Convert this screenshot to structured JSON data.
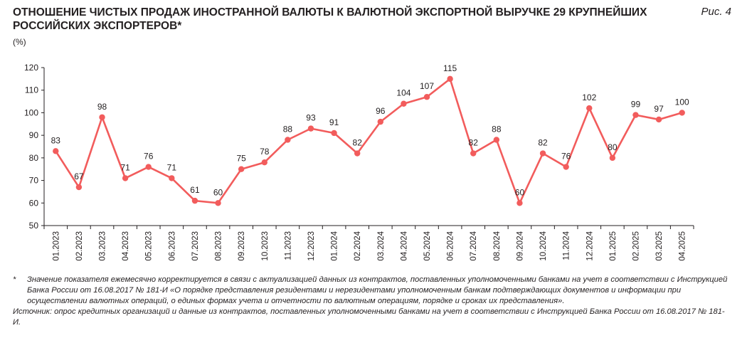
{
  "header": {
    "title": "ОТНОШЕНИЕ ЧИСТЫХ ПРОДАЖ ИНОСТРАННОЙ ВАЛЮТЫ К ВАЛЮТНОЙ ЭКСПОРТНОЙ ВЫРУЧКЕ 29 КРУПНЕЙШИХ РОССИЙСКИХ ЭКСПОРТЕРОВ*",
    "figure_label": "Рис. 4",
    "unit": "(%)"
  },
  "chart_data": {
    "type": "line",
    "title": "ОТНОШЕНИЕ ЧИСТЫХ ПРОДАЖ ИНОСТРАННОЙ ВАЛЮТЫ К ВАЛЮТНОЙ ЭКСПОРТНОЙ ВЫРУЧКЕ 29 КРУПНЕЙШИХ РОССИЙСКИХ ЭКСПОРТЕРОВ*",
    "ylabel": "(%)",
    "xlabel": "",
    "ylim": [
      50,
      120
    ],
    "yticks": [
      50,
      60,
      70,
      80,
      90,
      100,
      110,
      120
    ],
    "grid": false,
    "color": "#f25c5c",
    "categories": [
      "01.2023",
      "02.2023",
      "03.2023",
      "04.2023",
      "05.2023",
      "06.2023",
      "07.2023",
      "08.2023",
      "09.2023",
      "10.2023",
      "11.2023",
      "12.2023",
      "01.2024",
      "02.2024",
      "03.2024",
      "04.2024",
      "05.2024",
      "06.2024",
      "07.2024",
      "08.2024",
      "09.2024",
      "10.2024",
      "11.2024",
      "12.2024",
      "01.2025",
      "02.2025",
      "03.2025",
      "04.2025"
    ],
    "values": [
      83,
      67,
      98,
      71,
      76,
      71,
      61,
      60,
      75,
      78,
      88,
      93,
      91,
      82,
      96,
      104,
      107,
      115,
      82,
      88,
      60,
      82,
      76,
      102,
      80,
      99,
      97,
      100
    ],
    "labels": [
      "83",
      "67",
      "98",
      "71",
      "76",
      "71",
      "61",
      "60",
      "75",
      "78",
      "88",
      "93",
      "91",
      "82",
      "96",
      "104",
      "",
      "115",
      "82",
      "88",
      "60",
      "82",
      "76",
      "102",
      "80",
      "99",
      "97",
      "100"
    ],
    "labels_extra": {
      "16": "107"
    }
  },
  "notes": {
    "star": "*",
    "footnote": "Значение показателя ежемесячно корректируется в связи с актуализацией данных из контрактов, поставленных уполномоченными банками на учет в соответствии с Инструкцией Банка России от 16.08.2017 № 181-И «О порядке представления резидентами и нерезидентами уполномоченным банкам подтверждающих документов и информации при осуществлении валютных операций, о единых формах учета и отчетности по валютным операциям, порядке и сроках их представления».",
    "source": "Источник: опрос кредитных организаций и данные из контрактов, поставленных уполномоченными банками на учет в соответствии с Инструкцией Банка России от 16.08.2017 № 181-И."
  }
}
